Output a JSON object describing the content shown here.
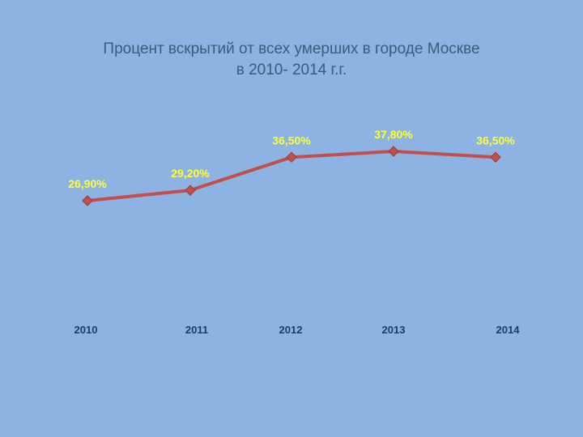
{
  "chart_data": {
    "type": "line",
    "title_line1": "Процент вскрытий от всех умерших в городе Москве",
    "title_line2": "в 2010- 2014 г.г.",
    "categories": [
      "2010",
      "2011",
      "2012",
      "2013",
      "2014"
    ],
    "series": [
      {
        "values": [
          26.9,
          29.2,
          36.5,
          37.8,
          36.5
        ],
        "labels": [
          "26,90%",
          "29,20%",
          "36,50%",
          "37,80%",
          "36,50%"
        ],
        "color": "#c0504d"
      }
    ],
    "ylim": [
      0,
      60
    ],
    "grid": false,
    "legend": "none",
    "label_color": "#ffff33",
    "background": "#8db3e2"
  }
}
